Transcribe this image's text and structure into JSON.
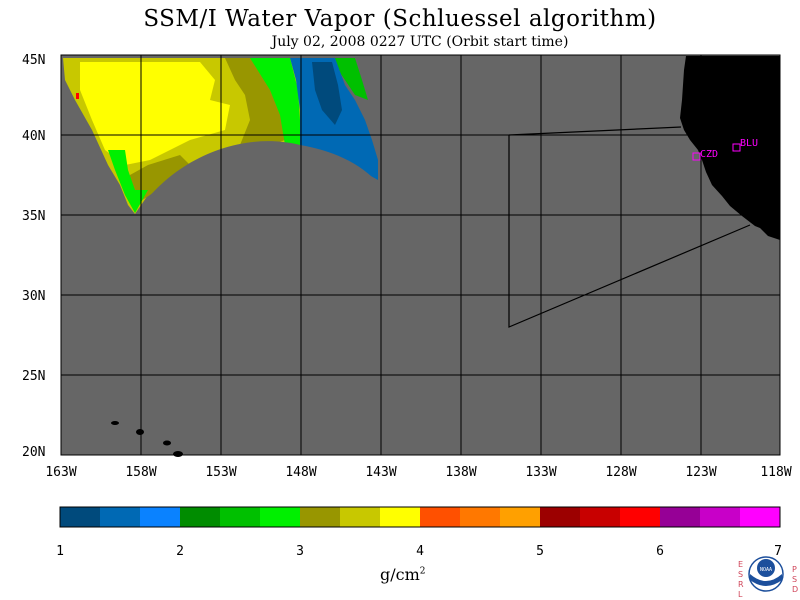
{
  "header": {
    "title": "SSM/I Water Vapor (Schluessel algorithm)",
    "subtitle": "July 02, 2008  0227 UTC  (Orbit start time)"
  },
  "map": {
    "lat_labels": [
      "45N",
      "40N",
      "35N",
      "30N",
      "25N",
      "20N"
    ],
    "lon_labels": [
      "163W",
      "158W",
      "153W",
      "148W",
      "143W",
      "138W",
      "133W",
      "128W",
      "123W",
      "118W"
    ],
    "stations": [
      {
        "id": "CZD",
        "color": "#ff00ff"
      },
      {
        "id": "BLU",
        "color": "#ff00ff"
      }
    ],
    "colors": {
      "no_data": "#666666",
      "land": "#000000",
      "grid": "#000000"
    }
  },
  "colorbar": {
    "tick_labels": [
      "1",
      "2",
      "3",
      "4",
      "5",
      "6",
      "7"
    ],
    "unit": "g/cm",
    "unit_superscript": "2",
    "colors": [
      "#004a7c",
      "#0069b4",
      "#0a82ff",
      "#008c00",
      "#00c000",
      "#00f000",
      "#989600",
      "#c8c800",
      "#ffff00",
      "#ff5000",
      "#ff7800",
      "#ffa000",
      "#9c0000",
      "#c80000",
      "#ff0000",
      "#960096",
      "#c800c8",
      "#ff00ff"
    ]
  },
  "logo": {
    "left_letters": [
      "E",
      "S",
      "R",
      "L"
    ],
    "right_letters": [
      "P",
      "S",
      "D"
    ],
    "name": "NOAA"
  }
}
